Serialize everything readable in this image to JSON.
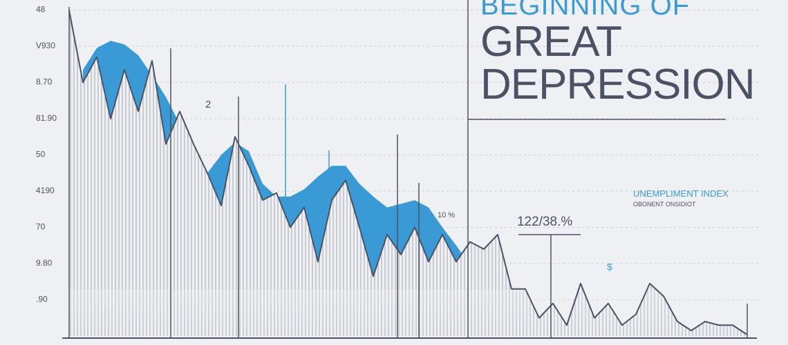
{
  "chart_data": {
    "type": "line",
    "supertitle": "BEGINNING OF",
    "title": "GREAT DEPRESSION",
    "legend_title": "UNEMPLIMENT INDEX",
    "legend_subtitle": "OBONENT ONSIDIOT",
    "annotations": [
      "2",
      "10 %",
      "122/38.%",
      "$"
    ],
    "ylim": [
      0,
      9.2
    ],
    "yticks": [
      {
        "value": 1,
        "label": ".90"
      },
      {
        "value": 2,
        "label": "9.80"
      },
      {
        "value": 3,
        "label": "70"
      },
      {
        "value": 4,
        "label": "4190"
      },
      {
        "value": 5,
        "label": "50"
      },
      {
        "value": 6,
        "label": "81.90"
      },
      {
        "value": 7,
        "label": "8.70"
      },
      {
        "value": 8,
        "label": "V930"
      },
      {
        "value": 9,
        "label": "48"
      }
    ],
    "grid": true,
    "series": [
      {
        "color": "#4a5263",
        "values": [
          8.99,
          7.0,
          7.7,
          6.0,
          7.35,
          6.2,
          7.6,
          5.3,
          6.2,
          5.3,
          4.5,
          3.6,
          5.5,
          4.7,
          3.75,
          3.95,
          3.0,
          3.55,
          2.05,
          3.75,
          4.3,
          3.0,
          1.65,
          2.8,
          2.25,
          3.0,
          2.05,
          2.8,
          2.05,
          2.6,
          2.4,
          2.8,
          1.3,
          1.3,
          0.5,
          0.9,
          0.3,
          1.45,
          0.5,
          0.9,
          0.3,
          0.6,
          1.45,
          1.1,
          0.4,
          0.15,
          0.4,
          0.3,
          0.3,
          0.05
        ]
      },
      {
        "color": "#3a9ad6",
        "values": [
          null,
          7.35,
          7.95,
          8.15,
          8.05,
          7.75,
          7.2,
          6.6,
          5.85,
          5.1,
          4.5,
          5.0,
          5.35,
          5.1,
          4.2,
          3.85,
          3.85,
          4.05,
          4.4,
          4.7,
          4.7,
          4.2,
          3.85,
          3.55,
          3.65,
          3.75,
          3.55,
          3.0,
          2.5,
          1.95,
          null,
          null,
          null,
          null,
          null,
          null,
          null,
          null,
          null,
          null,
          null,
          null,
          null,
          null,
          null,
          null,
          null,
          null,
          null,
          null
        ]
      }
    ]
  }
}
